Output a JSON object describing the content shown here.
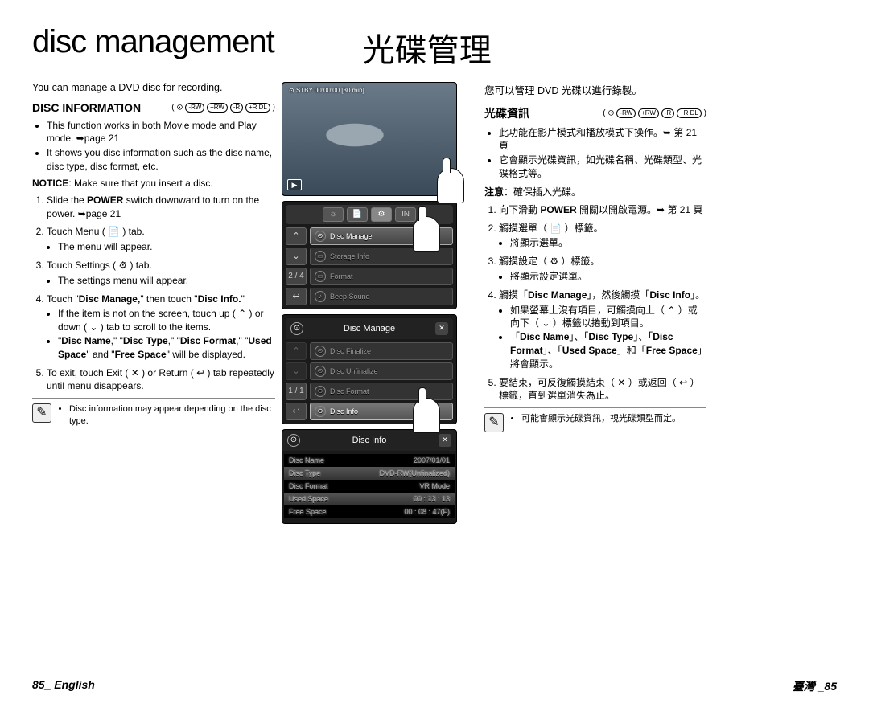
{
  "titles": {
    "en": "disc management",
    "zh": "光碟管理"
  },
  "intro_en": "You can manage a DVD disc for recording.",
  "intro_zh": "您可以管理 DVD 光碟以進行錄製。",
  "section_en": "DISC INFORMATION",
  "section_zh": "光碟資訊",
  "disc_icons": [
    "-RW",
    "+RW",
    "-R",
    "+R DL"
  ],
  "left": {
    "bullets": [
      "This function works in both Movie mode and Play mode. ➥page 21",
      "It shows you disc information such as the disc name, disc type, disc format, etc."
    ],
    "notice_label": "NOTICE",
    "notice_text": ": Make sure that you insert a disc.",
    "steps": [
      {
        "pre": "Slide the ",
        "b": "POWER",
        "post": " switch downward to turn on the power. ➥page 21"
      },
      {
        "text": "Touch Menu ( 📄 ) tab.",
        "sub": [
          "The menu will appear."
        ]
      },
      {
        "text": "Touch Settings ( ⚙ ) tab.",
        "sub": [
          "The settings menu will appear."
        ]
      },
      {
        "rich": "Touch \"<b>Disc Manage,</b>\" then touch \"<b>Disc Info.</b>\"",
        "sub": [
          "If the item is not on the screen, touch up ( ⌃ ) or down ( ⌄ ) tab to scroll to the items.",
          "\"<b>Disc Name</b>,\" \"<b>Disc Type</b>,\" \"<b>Disc Format</b>,\" \"<b>Used Space</b>\" and \"<b>Free Space</b>\" will be displayed."
        ]
      },
      {
        "text": "To exit, touch Exit ( ✕ ) or Return ( ↩ ) tab repeatedly until menu disappears."
      }
    ],
    "note": "Disc information may appear depending on the disc type."
  },
  "right": {
    "bullets": [
      "此功能在影片模式和播放模式下操作。➥ 第 21 頁",
      "它會顯示光碟資訊，如光碟名稱、光碟類型、光碟格式等。"
    ],
    "notice_label": "注意",
    "notice_text": "：確保插入光碟。",
    "steps": [
      {
        "rich": "向下滑動 <b>POWER</b> 開關以開啟電源。➥ 第 21 頁"
      },
      {
        "text": "觸摸選單（ 📄 ）標籤。",
        "sub": [
          "將顯示選單。"
        ]
      },
      {
        "text": "觸摸設定（ ⚙ ）標籤。",
        "sub": [
          "將顯示設定選單。"
        ]
      },
      {
        "rich": "觸摸「<b>Disc Manage</b>」，然後觸摸「<b>Disc Info</b>」。",
        "sub": [
          "如果螢幕上沒有項目，可觸摸向上（ ⌃ ）或向下（ ⌄ ）標籤以捲動到項目。",
          "「<b>Disc Name</b>」、「<b>Disc Type</b>」、「<b>Disc Format</b>」、「<b>Used Space</b>」和「<b>Free Space</b>」將會顯示。"
        ]
      },
      {
        "text": "要結束，可反復觸摸結束（ ✕ ）或返回（ ↩ ）標籤，直到選單消失為止。"
      }
    ],
    "note": "可能會顯示光碟資訊，視光碟類型而定。"
  },
  "screens": {
    "top_status_left": "STBY 00:00:00",
    "top_status_mid": "[30 min]",
    "menu1_count": "2 / 4",
    "menu1_rows": [
      "Disc Manage",
      "Storage Info",
      "Format",
      "Beep Sound"
    ],
    "menu2_title": "Disc Manage",
    "menu2_count": "1 / 1",
    "menu2_rows": [
      "Disc Finalize",
      "Disc Unfinalize",
      "Disc Format",
      "Disc Info"
    ],
    "info_title": "Disc Info",
    "info_rows": [
      [
        "Disc Name",
        "2007/01/01"
      ],
      [
        "Disc Type",
        "DVD-RW(Unfinalized)"
      ],
      [
        "Disc Format",
        "VR Mode"
      ],
      [
        "Used Space",
        "00 : 13 : 13"
      ],
      [
        "Free Space",
        "00 : 08 : 47(F)"
      ]
    ]
  },
  "footer": {
    "left": "85_ English",
    "right": "臺灣 _85"
  }
}
